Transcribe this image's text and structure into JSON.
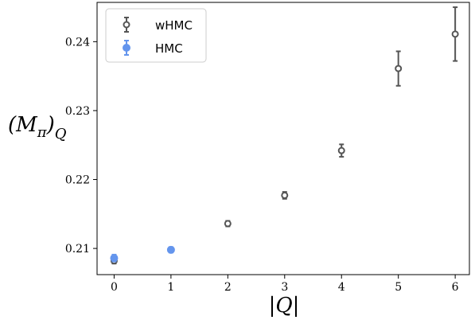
{
  "chart_data": {
    "type": "scatter",
    "xlabel": "|Q|",
    "ylabel": "(M_π)_Q",
    "ylabel_main": "(M",
    "ylabel_sub_pi": "π",
    "ylabel_close": ")",
    "ylabel_sub_q": "Q",
    "xlim": [
      -0.3,
      6.25
    ],
    "ylim": [
      0.2062,
      0.2457
    ],
    "xticks": [
      0,
      1,
      2,
      3,
      4,
      5,
      6
    ],
    "yticks": [
      0.21,
      0.22,
      0.23,
      0.24
    ],
    "ytick_labels": [
      "0.21",
      "0.22",
      "0.23",
      "0.24"
    ],
    "grid": false,
    "legend_position": "upper-left",
    "series": [
      {
        "name": "wHMC",
        "marker": "open-circle",
        "color": "#555555",
        "x": [
          0,
          1,
          2,
          3,
          4,
          5,
          6
        ],
        "y": [
          0.2082,
          0.2098,
          0.2136,
          0.2177,
          0.2242,
          0.2361,
          0.2411
        ],
        "yerr": [
          0.0004,
          0.0003,
          0.0004,
          0.0005,
          0.0009,
          0.0025,
          0.0039
        ]
      },
      {
        "name": "HMC",
        "marker": "filled-circle",
        "color": "#6495ED",
        "x": [
          0,
          1
        ],
        "y": [
          0.2086,
          0.2098
        ],
        "yerr": [
          0.0005,
          0.0004
        ]
      }
    ]
  }
}
